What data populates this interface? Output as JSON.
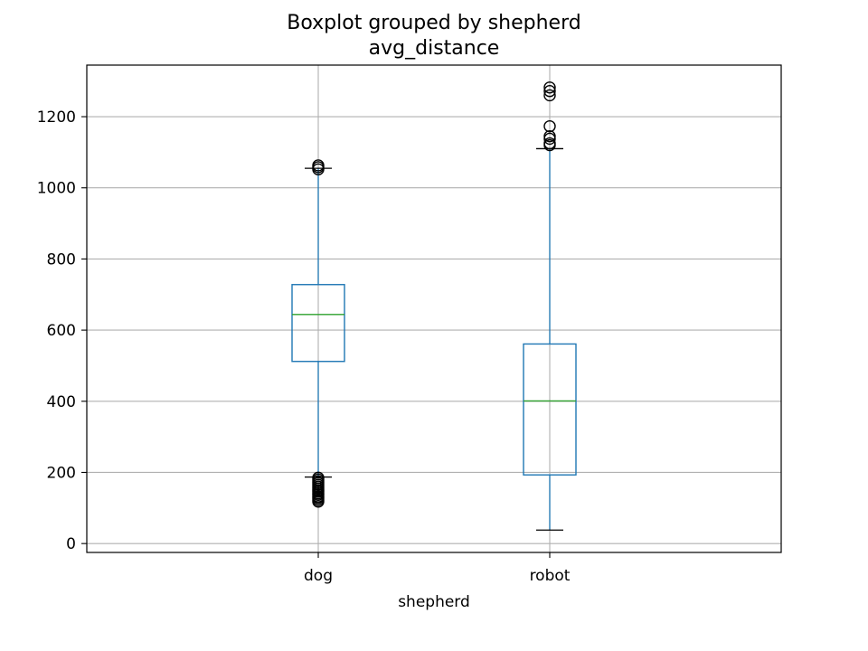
{
  "chart_data": {
    "type": "box",
    "title": "Boxplot grouped by shepherd",
    "subtitle": "avg_distance",
    "xlabel": "shepherd",
    "ylabel": "",
    "categories": [
      "dog",
      "robot"
    ],
    "ylim": [
      -25,
      1345
    ],
    "yticks": [
      0,
      200,
      400,
      600,
      800,
      1000,
      1200
    ],
    "grid": true,
    "boxes": [
      {
        "category": "dog",
        "whisker_low": 187,
        "q1": 512,
        "median": 644,
        "q3": 728,
        "whisker_high": 1055,
        "outliers": [
          118,
          123,
          128,
          132,
          137,
          141,
          146,
          150,
          155,
          160,
          165,
          170,
          175,
          180,
          185,
          1052,
          1058,
          1063
        ]
      },
      {
        "category": "robot",
        "whisker_low": 38,
        "q1": 193,
        "median": 401,
        "q3": 561,
        "whisker_high": 1110,
        "outliers": [
          1120,
          1125,
          1138,
          1145,
          1173,
          1260,
          1272,
          1282
        ]
      }
    ],
    "colors": {
      "box": "#1f77b4",
      "median": "#2ca02c",
      "whisker": "#1f77b4",
      "cap": "#000000",
      "flier": "#000000",
      "grid": "#b0b0b0",
      "frame": "#000000"
    }
  }
}
